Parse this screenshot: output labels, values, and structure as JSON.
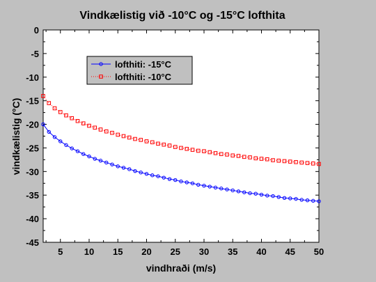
{
  "chart_data": {
    "type": "line",
    "title": "Vindkælistig við -10°C og -15°C lofthita",
    "xlabel": "vindhraði (m/s)",
    "ylabel": "vindkælistig (°C)",
    "xlim": [
      2,
      50
    ],
    "ylim": [
      -45,
      0
    ],
    "xticks": [
      5,
      10,
      15,
      20,
      25,
      30,
      35,
      40,
      45,
      50
    ],
    "yticks": [
      0,
      -5,
      -10,
      -15,
      -20,
      -25,
      -30,
      -35,
      -40,
      -45
    ],
    "x": [
      2,
      3,
      4,
      5,
      6,
      7,
      8,
      9,
      10,
      11,
      12,
      13,
      14,
      15,
      16,
      17,
      18,
      19,
      20,
      21,
      22,
      23,
      24,
      25,
      26,
      27,
      28,
      29,
      30,
      31,
      32,
      33,
      34,
      35,
      36,
      37,
      38,
      39,
      40,
      41,
      42,
      43,
      44,
      45,
      46,
      47,
      48,
      49,
      50
    ],
    "grid": false,
    "legend_position": "top-left",
    "series": [
      {
        "name": "lofthiti: -15°C",
        "color": "#0000ff",
        "marker": "circle",
        "line": "solid",
        "values": [
          -20.0,
          -21.6,
          -22.7,
          -23.6,
          -24.4,
          -25.1,
          -25.7,
          -26.3,
          -26.8,
          -27.3,
          -27.7,
          -28.1,
          -28.5,
          -28.9,
          -29.2,
          -29.5,
          -29.9,
          -30.2,
          -30.5,
          -30.8,
          -31.0,
          -31.3,
          -31.6,
          -31.8,
          -32.1,
          -32.3,
          -32.5,
          -32.8,
          -33.0,
          -33.2,
          -33.4,
          -33.6,
          -33.8,
          -34.0,
          -34.2,
          -34.4,
          -34.6,
          -34.7,
          -34.9,
          -35.1,
          -35.2,
          -35.4,
          -35.6,
          -35.7,
          -35.8,
          -36.0,
          -36.1,
          -36.2,
          -36.3
        ]
      },
      {
        "name": "lofthiti: -10°C",
        "color": "#ff0000",
        "marker": "square",
        "line": "dotted",
        "values": [
          -14.0,
          -15.5,
          -16.6,
          -17.4,
          -18.1,
          -18.7,
          -19.3,
          -19.8,
          -20.3,
          -20.7,
          -21.1,
          -21.5,
          -21.8,
          -22.2,
          -22.5,
          -22.8,
          -23.1,
          -23.3,
          -23.6,
          -23.8,
          -24.1,
          -24.3,
          -24.5,
          -24.8,
          -25.0,
          -25.2,
          -25.4,
          -25.6,
          -25.7,
          -25.9,
          -26.1,
          -26.3,
          -26.4,
          -26.6,
          -26.7,
          -26.9,
          -27.0,
          -27.2,
          -27.3,
          -27.4,
          -27.6,
          -27.7,
          -27.8,
          -27.9,
          -28.0,
          -28.1,
          -28.2,
          -28.3,
          -28.4
        ]
      }
    ]
  }
}
